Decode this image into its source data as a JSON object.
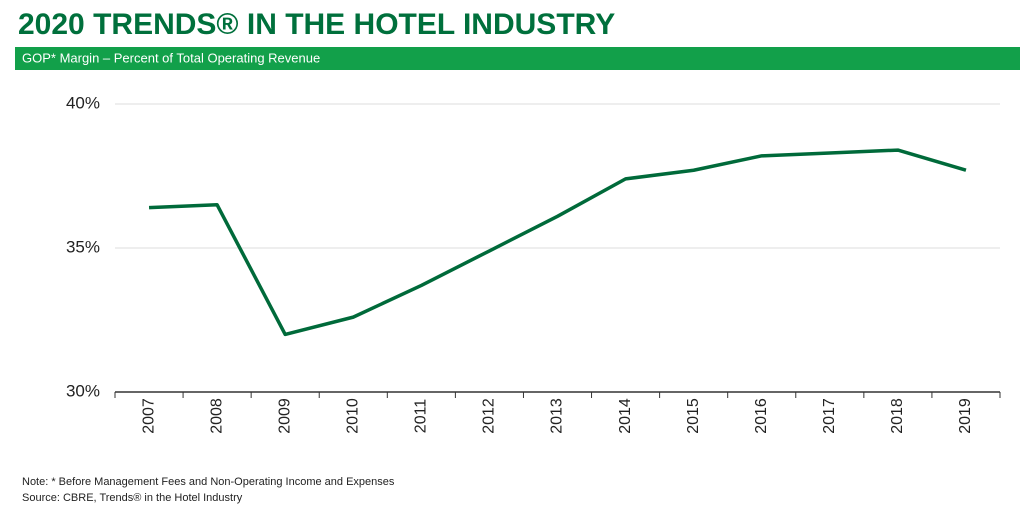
{
  "chart_data": {
    "type": "line",
    "title": "2020 TRENDS® IN THE HOTEL INDUSTRY",
    "subtitle": "GOP* Margin – Percent of Total Operating Revenue",
    "categories": [
      "2007",
      "2008",
      "2009",
      "2010",
      "2011",
      "2012",
      "2013",
      "2014",
      "2015",
      "2016",
      "2017",
      "2018",
      "2019"
    ],
    "values": [
      36.4,
      36.5,
      32.0,
      32.6,
      33.7,
      34.9,
      36.1,
      37.4,
      37.7,
      38.2,
      38.3,
      38.4,
      37.7
    ],
    "color": "#006a3a",
    "ylim": [
      30,
      40
    ],
    "yticks": [
      {
        "value": 30,
        "label": "30%"
      },
      {
        "value": 35,
        "label": "35%"
      },
      {
        "value": 40,
        "label": "40%"
      }
    ],
    "grid": true,
    "notes": [
      "Note: * Before Management Fees and Non-Operating Income and Expenses",
      "Source: CBRE, Trends® in the Hotel Industry"
    ]
  }
}
